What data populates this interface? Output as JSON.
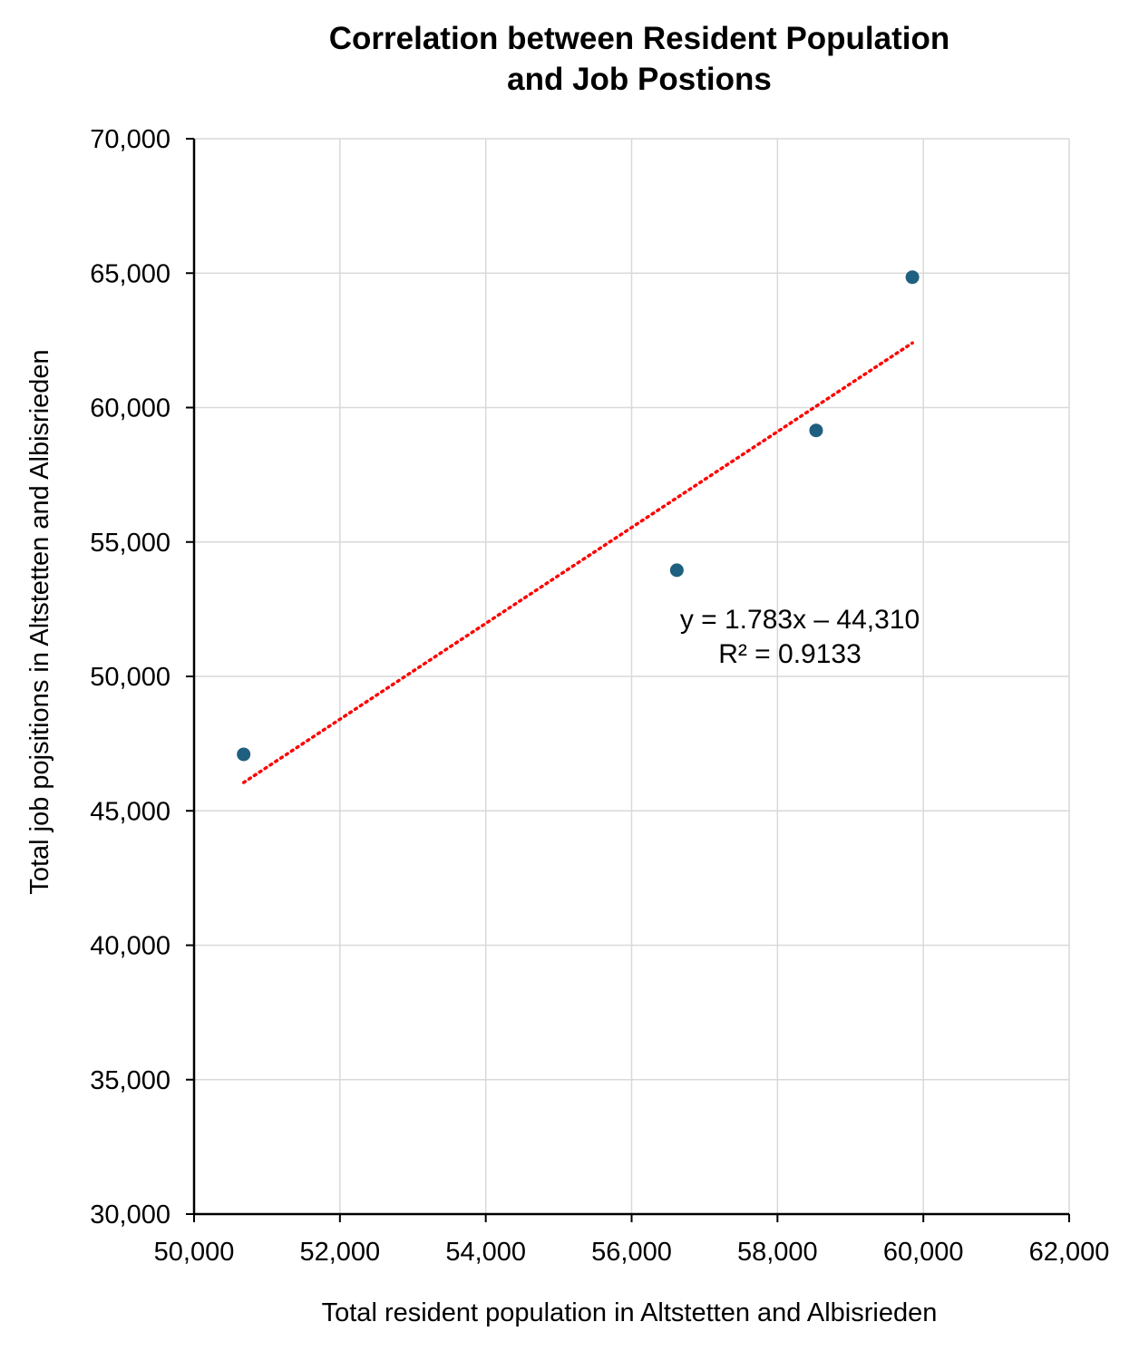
{
  "chart_data": {
    "type": "scatter",
    "title": [
      "Correlation between Resident Population",
      "and Job Postions"
    ],
    "xlabel": "Total resident population in Altstetten and Albisrieden",
    "ylabel": "Total job pojsitions in Altstetten and Albisrieden",
    "xlim": [
      50000,
      62000
    ],
    "ylim": [
      30000,
      70000
    ],
    "x_ticks": [
      50000,
      52000,
      54000,
      56000,
      58000,
      60000,
      62000
    ],
    "y_ticks": [
      30000,
      35000,
      40000,
      45000,
      50000,
      55000,
      60000,
      65000,
      70000
    ],
    "x_tick_labels": [
      "50,000",
      "52,000",
      "54,000",
      "56,000",
      "58,000",
      "60,000",
      "62,000"
    ],
    "y_tick_labels": [
      "30,000",
      "35,000",
      "40,000",
      "45,000",
      "50,000",
      "55,000",
      "60,000",
      "65,000",
      "70,000"
    ],
    "grid": true,
    "series": [
      {
        "color": "#1f5f7f",
        "points": [
          {
            "x": 50680,
            "y": 47100
          },
          {
            "x": 56620,
            "y": 53950
          },
          {
            "x": 58530,
            "y": 59150
          },
          {
            "x": 59850,
            "y": 64850
          }
        ]
      }
    ],
    "trendline": {
      "color": "#ff0000",
      "style": "dotted",
      "x_start": 50680,
      "x_end": 59850,
      "slope": 1.783,
      "intercept": -44310,
      "equation": "y = 1.783x – 44,310",
      "r_squared": "R² = 0.9133"
    }
  }
}
